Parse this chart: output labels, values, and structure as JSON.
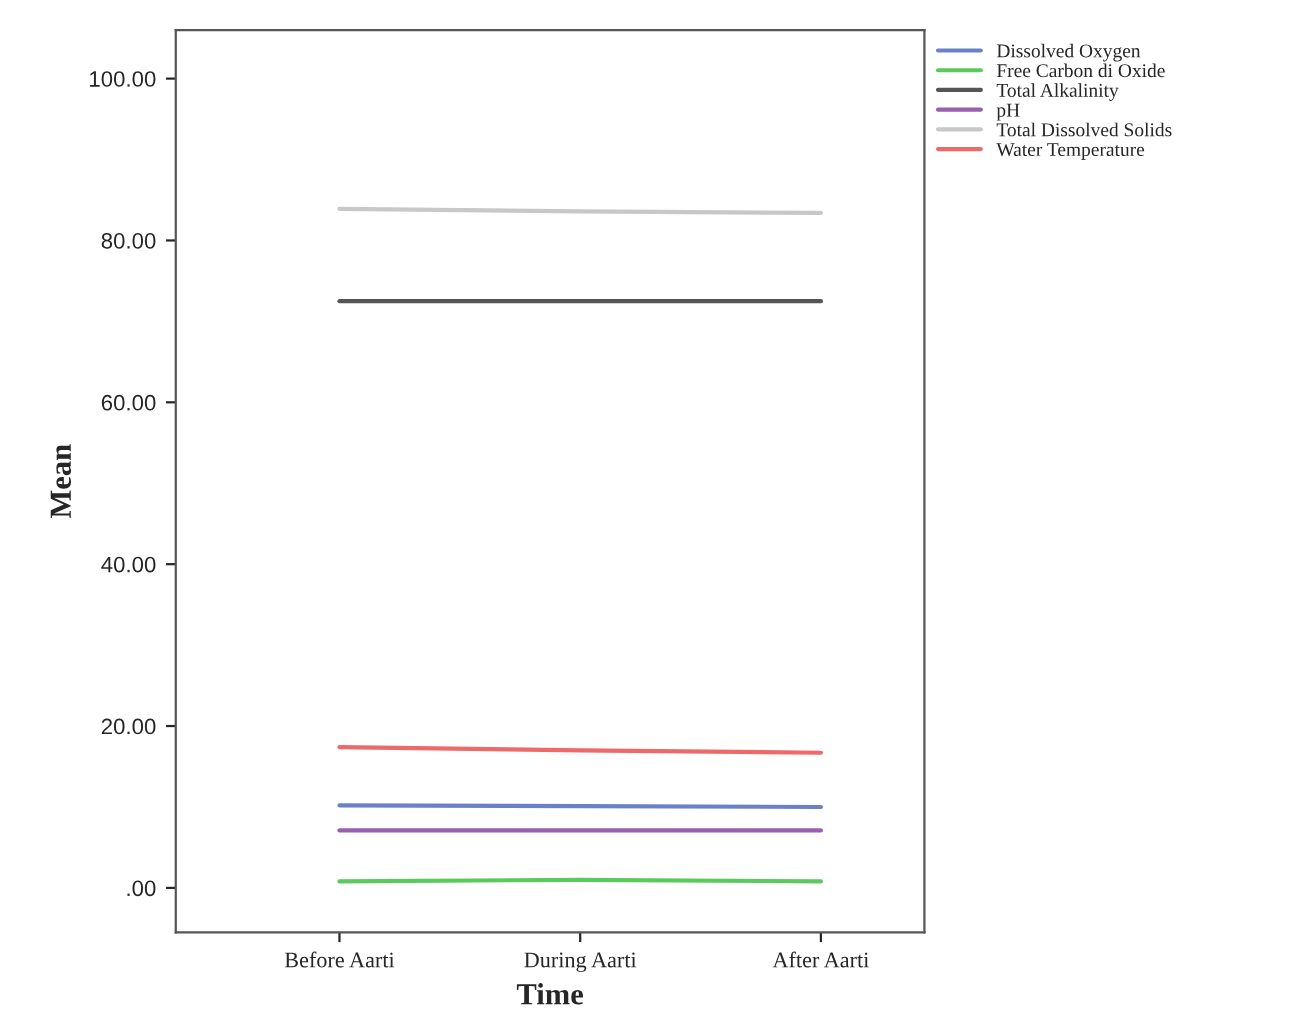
{
  "chart_data": {
    "type": "line",
    "xlabel": "Time",
    "ylabel": "Mean",
    "categories": [
      "Before Aarti",
      "During Aarti",
      "After Aarti"
    ],
    "series": [
      {
        "name": "Dissolved Oxygen",
        "color": "#6a80c8",
        "values": [
          10.2,
          10.1,
          10.0
        ]
      },
      {
        "name": "Free Carbon di Oxide",
        "color": "#5cc95c",
        "values": [
          0.8,
          1.0,
          0.8
        ]
      },
      {
        "name": "Total Alkalinity",
        "color": "#555555",
        "values": [
          72.5,
          72.5,
          72.5
        ]
      },
      {
        "name": "pH",
        "color": "#9b5fb0",
        "values": [
          7.1,
          7.1,
          7.1
        ]
      },
      {
        "name": "Total Dissolved Solids",
        "color": "#c8c8c8",
        "values": [
          83.9,
          83.6,
          83.4
        ]
      },
      {
        "name": "Water Temperature",
        "color": "#ee6a6a",
        "values": [
          17.4,
          17.0,
          16.7
        ]
      }
    ],
    "ylim": [
      -5.5,
      106
    ],
    "yticks": [
      {
        "value": 0,
        "label": ".00"
      },
      {
        "value": 20,
        "label": "20.00"
      },
      {
        "value": 40,
        "label": "40.00"
      },
      {
        "value": 60,
        "label": "60.00"
      },
      {
        "value": 80,
        "label": "80.00"
      },
      {
        "value": 100,
        "label": "100.00"
      }
    ],
    "grid": false,
    "legend": "top right",
    "line_style": "solid",
    "marker": "none"
  }
}
